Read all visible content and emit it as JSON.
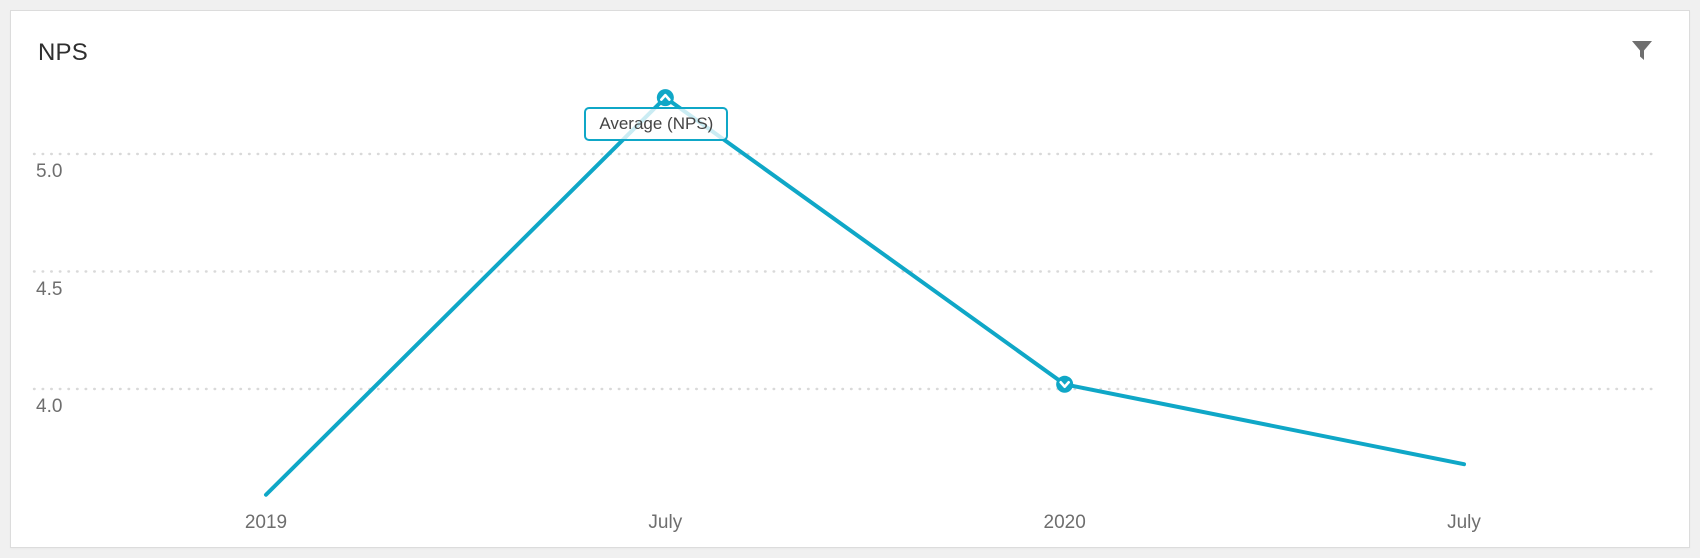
{
  "card": {
    "title": "NPS"
  },
  "toolbar": {
    "filter_icon": "filter-funnel-icon"
  },
  "chart_data": {
    "type": "line",
    "title": "NPS",
    "x_labels": [
      "2019",
      "July",
      "2020",
      "July"
    ],
    "y_ticks": [
      "5.0",
      "4.5",
      "4.0"
    ],
    "ylim": [
      3.3,
      5.45
    ],
    "grid": "horizontal-dotted",
    "legend_position": "none",
    "series": [
      {
        "name": "Average (NPS)",
        "values": [
          3.55,
          5.24,
          4.02,
          3.68
        ]
      }
    ],
    "tooltip": {
      "label": "Average (NPS)",
      "point_index": 1
    },
    "markers": [
      {
        "point_index": 1,
        "shape": "chevron-up-circle"
      },
      {
        "point_index": 2,
        "shape": "chevron-down-circle"
      }
    ],
    "colors": {
      "line": "#0fa7c7",
      "grid": "#d9d9d9",
      "axis_text": "#6e6e6e",
      "title_text": "#2f2f2f",
      "tooltip_border": "#0fa7c7",
      "tooltip_text": "#444444",
      "filter_icon": "#6f6f6f",
      "card_background": "#ffffff",
      "page_background": "#f0f0f0",
      "card_border": "#dcdcdc"
    }
  }
}
